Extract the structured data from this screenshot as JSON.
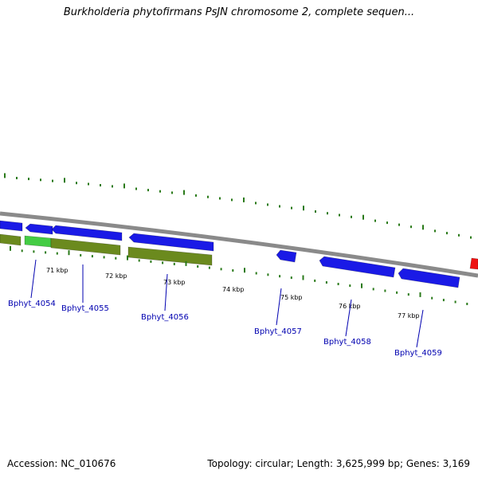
{
  "title": "Burkholderia phytofirmans PsJN chromosome 2, complete sequen...",
  "footer": {
    "accession": "Accession: NC_010676",
    "meta": "Topology: circular; Length: 3,625,999 bp; Genes: 3,169"
  },
  "colors": {
    "backbone": "#8a8a8a",
    "tick": "#2a7a1a",
    "gene_blue": "#1a1ae6",
    "gene_green": "#6b8a1e",
    "gene_light_green": "#44cc44",
    "gene_red": "#ee1111",
    "label": "#0000b0"
  },
  "kbp_labels": [
    "71 kbp",
    "72 kbp",
    "73 kbp",
    "74 kbp",
    "75 kbp",
    "76 kbp",
    "77 kbp"
  ],
  "gene_labels": [
    "Bphyt_4054",
    "Bphyt_4055",
    "Bphyt_4056",
    "Bphyt_4057",
    "Bphyt_4058",
    "Bphyt_4059"
  ]
}
